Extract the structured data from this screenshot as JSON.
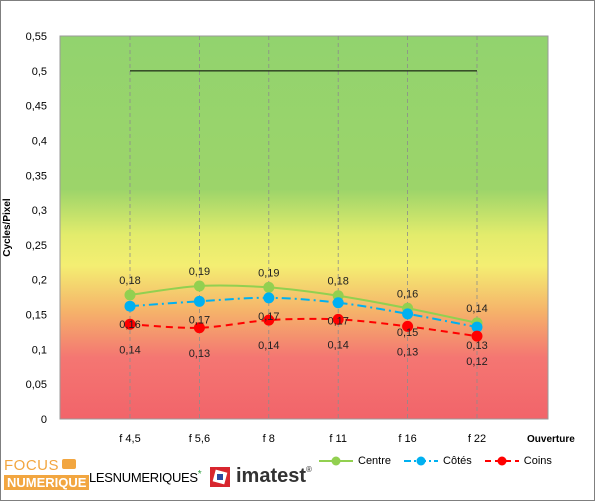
{
  "chart_data": {
    "type": "line",
    "categories": [
      "f 4,5",
      "f 5,6",
      "f 8",
      "f 11",
      "f 16",
      "f 22"
    ],
    "xlabel": "Ouverture",
    "ylabel": "Cycles/Pixel",
    "ylim": [
      0,
      0.55
    ],
    "yticks": [
      "0",
      "0,05",
      "0,1",
      "0,15",
      "0,2",
      "0,25",
      "0,3",
      "0,35",
      "0,4",
      "0,45",
      "0,5",
      "0,55"
    ],
    "reference_line": 0.5,
    "background": "vertical gradient green (top) to yellow to red (bottom)",
    "grid": "vertical dashed lines at categories",
    "legend_position": "bottom-right",
    "series": [
      {
        "name": "Centre",
        "color": "#92d050",
        "style": "solid",
        "values": [
          0.178,
          0.191,
          0.189,
          0.177,
          0.159,
          0.138
        ],
        "labels": [
          "0,18",
          "0,19",
          "0,19",
          "0,18",
          "0,16",
          "0,14"
        ]
      },
      {
        "name": "Côtés",
        "color": "#00b0f0",
        "style": "dashdot",
        "values": [
          0.162,
          0.169,
          0.174,
          0.167,
          0.151,
          0.132
        ],
        "labels": [
          "0,16",
          "0,17",
          "0,17",
          "0,17",
          "0,15",
          "0,13"
        ]
      },
      {
        "name": "Coins",
        "color": "#ff0000",
        "style": "dashed",
        "values": [
          0.136,
          0.131,
          0.142,
          0.143,
          0.133,
          0.119
        ],
        "labels": [
          "0,14",
          "0,13",
          "0,14",
          "0,14",
          "0,13",
          "0,12"
        ]
      }
    ]
  },
  "branding": {
    "focus": "FOCUS",
    "numerique": "NUMERIQUE",
    "lesnumeriques": "LESNUMERIQUES",
    "lesnumeriques_mark": "*",
    "imatest": "imatest",
    "imatest_mark": "®"
  }
}
